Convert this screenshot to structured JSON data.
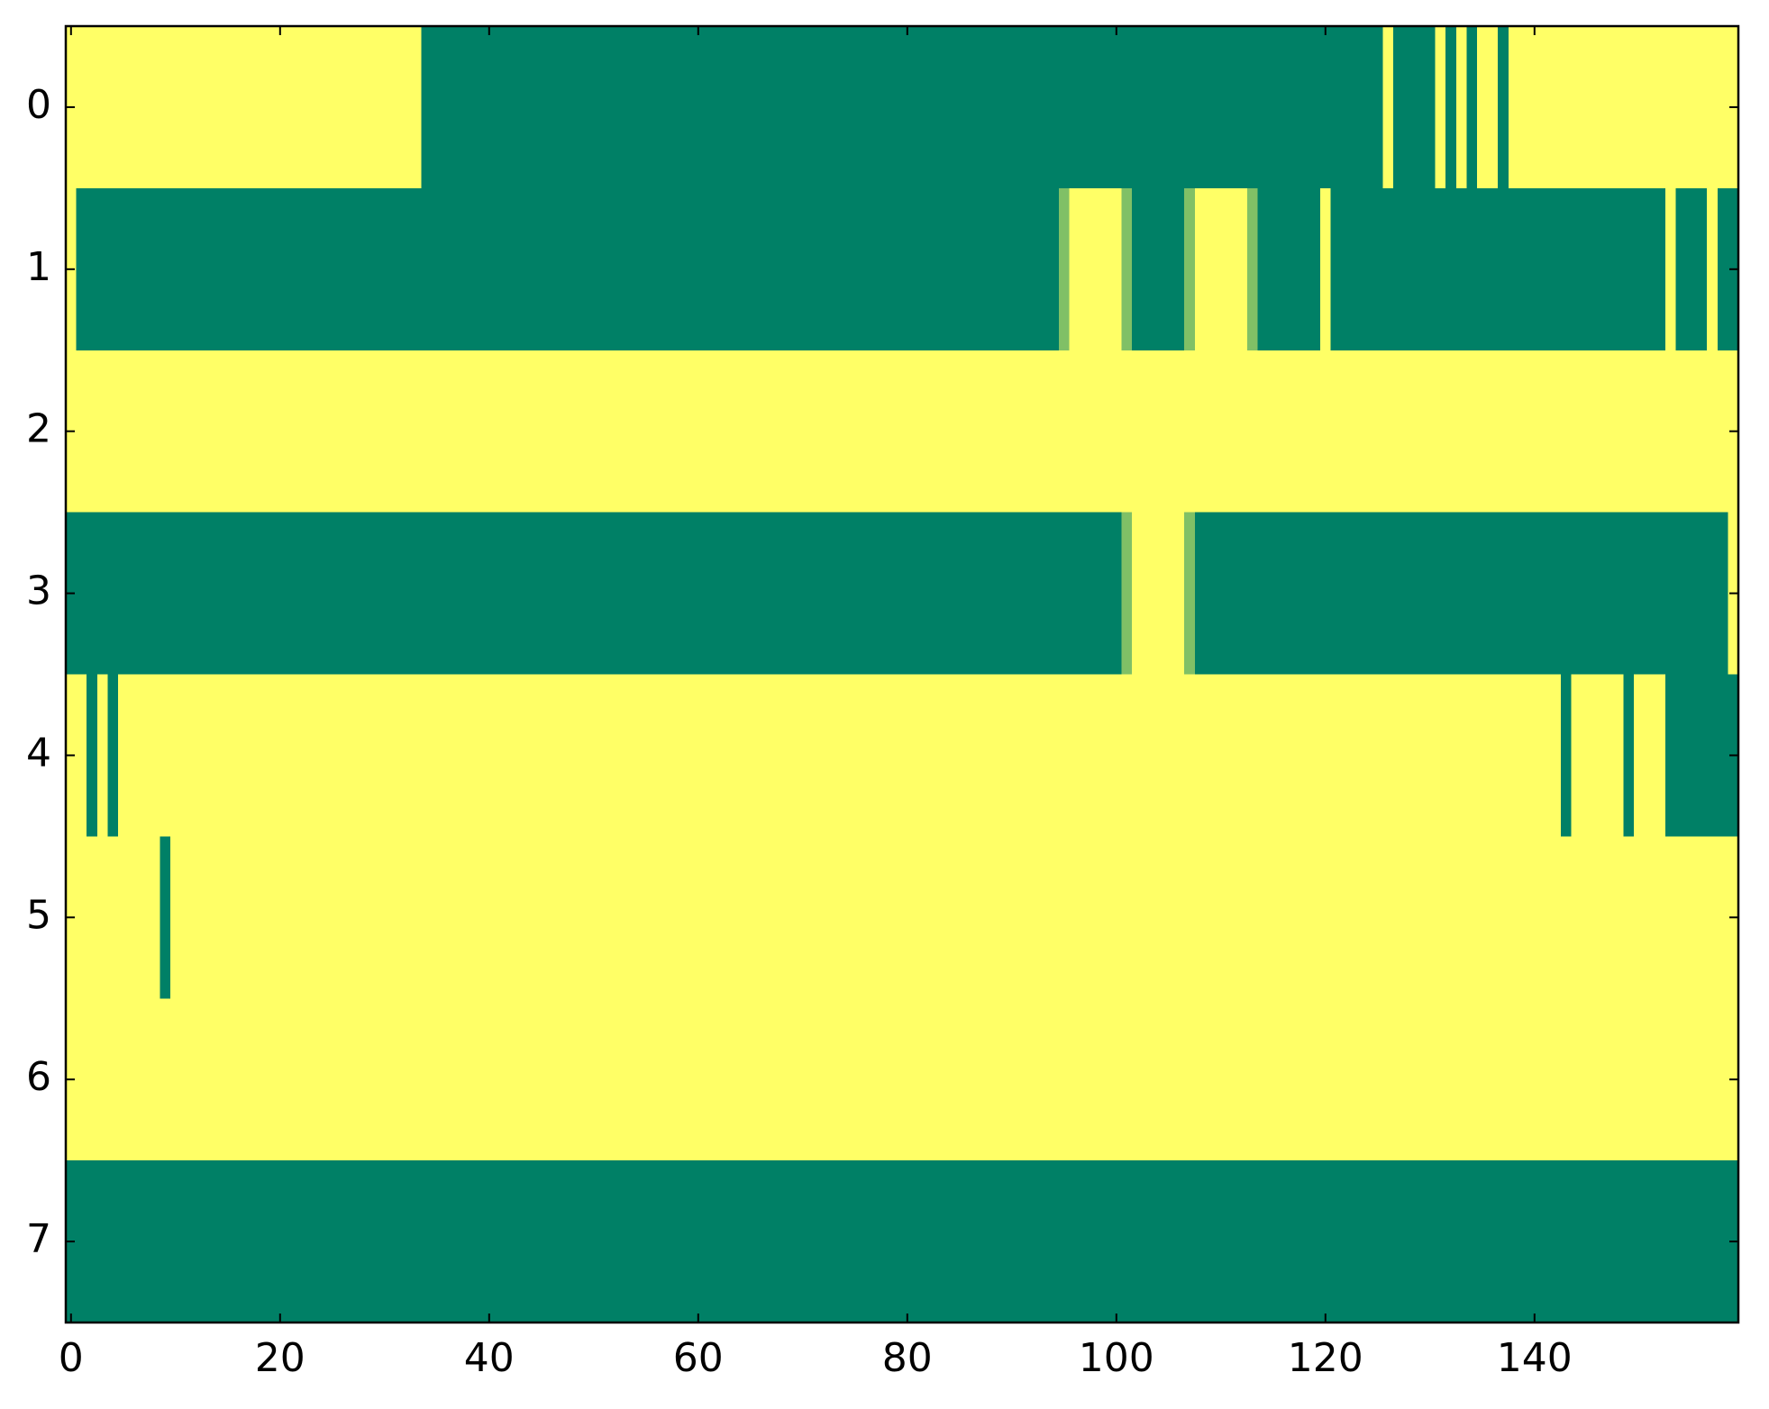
{
  "chart_data": {
    "type": "heatmap",
    "colormap": "summer",
    "cmap_colors": [
      "#008066",
      "#ffff66"
    ],
    "clim": [
      0,
      1
    ],
    "xlim": [
      -0.5,
      159.5
    ],
    "ylim": [
      7.5,
      -0.5
    ],
    "xticks": [
      0,
      20,
      40,
      60,
      80,
      100,
      120,
      140
    ],
    "yticks": [
      0,
      1,
      2,
      3,
      4,
      5,
      6,
      7
    ],
    "values": [
      [
        1,
        1,
        1,
        1,
        1,
        1,
        1,
        1,
        1,
        1,
        1,
        1,
        1,
        1,
        1,
        1,
        1,
        1,
        1,
        1,
        1,
        1,
        1,
        1,
        1,
        1,
        1,
        1,
        1,
        1,
        1,
        1,
        1,
        1,
        0,
        0,
        0,
        0,
        0,
        0,
        0,
        0,
        0,
        0,
        0,
        0,
        0,
        0,
        0,
        0,
        0,
        0,
        0,
        0,
        0,
        0,
        0,
        0,
        0,
        0,
        0,
        0,
        0,
        0,
        0,
        0,
        0,
        0,
        0,
        0,
        0,
        0,
        0,
        0,
        0,
        0,
        0,
        0,
        0,
        0,
        0,
        0,
        0,
        0,
        0,
        0,
        0,
        0,
        0,
        0,
        0,
        0,
        0,
        0,
        0,
        0,
        0,
        0,
        0,
        0,
        0,
        0,
        0,
        0,
        0,
        0,
        0,
        0,
        0,
        0,
        0,
        0,
        0,
        0,
        0,
        0,
        0,
        0,
        0,
        0,
        0,
        0,
        0,
        0,
        0,
        0,
        1,
        0,
        0,
        0,
        0,
        1,
        0,
        1,
        0,
        1,
        1,
        0,
        1,
        1,
        1,
        1,
        1,
        1,
        1,
        1,
        1,
        1,
        1,
        1,
        1,
        1,
        1,
        1,
        1,
        1,
        1,
        1,
        1,
        1
      ],
      [
        1,
        0,
        0,
        0,
        0,
        0,
        0,
        0,
        0,
        0,
        0,
        0,
        0,
        0,
        0,
        0,
        0,
        0,
        0,
        0,
        0,
        0,
        0,
        0,
        0,
        0,
        0,
        0,
        0,
        0,
        0,
        0,
        0,
        0,
        0,
        0,
        0,
        0,
        0,
        0,
        0,
        0,
        0,
        0,
        0,
        0,
        0,
        0,
        0,
        0,
        0,
        0,
        0,
        0,
        0,
        0,
        0,
        0,
        0,
        0,
        0,
        0,
        0,
        0,
        0,
        0,
        0,
        0,
        0,
        0,
        0,
        0,
        0,
        0,
        0,
        0,
        0,
        0,
        0,
        0,
        0,
        0,
        0,
        0,
        0,
        0,
        0,
        0,
        0,
        0,
        0,
        0,
        0,
        0,
        0,
        0.5,
        1,
        1,
        1,
        1,
        1,
        0.5,
        0,
        0,
        0,
        0,
        0,
        0.5,
        1,
        1,
        1,
        1,
        1,
        0.5,
        0,
        0,
        0,
        0,
        0,
        0,
        1,
        0,
        0,
        0,
        0,
        0,
        0,
        0,
        0,
        0,
        0,
        0,
        0,
        0,
        0,
        0,
        0,
        0,
        0,
        0,
        0,
        0,
        0,
        0,
        0,
        0,
        0,
        0,
        0,
        0,
        0,
        0,
        0,
        1,
        0,
        0,
        0,
        1,
        0,
        0
      ],
      [
        1,
        1,
        1,
        1,
        1,
        1,
        1,
        1,
        1,
        1,
        1,
        1,
        1,
        1,
        1,
        1,
        1,
        1,
        1,
        1,
        1,
        1,
        1,
        1,
        1,
        1,
        1,
        1,
        1,
        1,
        1,
        1,
        1,
        1,
        1,
        1,
        1,
        1,
        1,
        1,
        1,
        1,
        1,
        1,
        1,
        1,
        1,
        1,
        1,
        1,
        1,
        1,
        1,
        1,
        1,
        1,
        1,
        1,
        1,
        1,
        1,
        1,
        1,
        1,
        1,
        1,
        1,
        1,
        1,
        1,
        1,
        1,
        1,
        1,
        1,
        1,
        1,
        1,
        1,
        1,
        1,
        1,
        1,
        1,
        1,
        1,
        1,
        1,
        1,
        1,
        1,
        1,
        1,
        1,
        1,
        1,
        1,
        1,
        1,
        1,
        1,
        1,
        1,
        1,
        1,
        1,
        1,
        1,
        1,
        1,
        1,
        1,
        1,
        1,
        1,
        1,
        1,
        1,
        1,
        1,
        1,
        1,
        1,
        1,
        1,
        1,
        1,
        1,
        1,
        1,
        1,
        1,
        1,
        1,
        1,
        1,
        1,
        1,
        1,
        1,
        1,
        1,
        1,
        1,
        1,
        1,
        1,
        1,
        1,
        1,
        1,
        1,
        1,
        1,
        1,
        1,
        1,
        1,
        1,
        1
      ],
      [
        0,
        0,
        0,
        0,
        0,
        0,
        0,
        0,
        0,
        0,
        0,
        0,
        0,
        0,
        0,
        0,
        0,
        0,
        0,
        0,
        0,
        0,
        0,
        0,
        0,
        0,
        0,
        0,
        0,
        0,
        0,
        0,
        0,
        0,
        0,
        0,
        0,
        0,
        0,
        0,
        0,
        0,
        0,
        0,
        0,
        0,
        0,
        0,
        0,
        0,
        0,
        0,
        0,
        0,
        0,
        0,
        0,
        0,
        0,
        0,
        0,
        0,
        0,
        0,
        0,
        0,
        0,
        0,
        0,
        0,
        0,
        0,
        0,
        0,
        0,
        0,
        0,
        0,
        0,
        0,
        0,
        0,
        0,
        0,
        0,
        0,
        0,
        0,
        0,
        0,
        0,
        0,
        0,
        0,
        0,
        0,
        0,
        0,
        0,
        0,
        0,
        0.5,
        1,
        1,
        1,
        1,
        1,
        0.5,
        0,
        0,
        0,
        0,
        0,
        0,
        0,
        0,
        0,
        0,
        0,
        0,
        0,
        0,
        0,
        0,
        0,
        0,
        0,
        0,
        0,
        0,
        0,
        0,
        0,
        0,
        0,
        0,
        0,
        0,
        0,
        0,
        0,
        0,
        0,
        0,
        0,
        0,
        0,
        0,
        0,
        0,
        0,
        0,
        0,
        0,
        0,
        0,
        0,
        0,
        0,
        1
      ],
      [
        1,
        1,
        0,
        1,
        0,
        1,
        1,
        1,
        1,
        1,
        1,
        1,
        1,
        1,
        1,
        1,
        1,
        1,
        1,
        1,
        1,
        1,
        1,
        1,
        1,
        1,
        1,
        1,
        1,
        1,
        1,
        1,
        1,
        1,
        1,
        1,
        1,
        1,
        1,
        1,
        1,
        1,
        1,
        1,
        1,
        1,
        1,
        1,
        1,
        1,
        1,
        1,
        1,
        1,
        1,
        1,
        1,
        1,
        1,
        1,
        1,
        1,
        1,
        1,
        1,
        1,
        1,
        1,
        1,
        1,
        1,
        1,
        1,
        1,
        1,
        1,
        1,
        1,
        1,
        1,
        1,
        1,
        1,
        1,
        1,
        1,
        1,
        1,
        1,
        1,
        1,
        1,
        1,
        1,
        1,
        1,
        1,
        1,
        1,
        1,
        1,
        1,
        1,
        1,
        1,
        1,
        1,
        1,
        1,
        1,
        1,
        1,
        1,
        1,
        1,
        1,
        1,
        1,
        1,
        1,
        1,
        1,
        1,
        1,
        1,
        1,
        1,
        1,
        1,
        1,
        1,
        1,
        1,
        1,
        1,
        1,
        1,
        1,
        1,
        1,
        1,
        1,
        1,
        0,
        1,
        1,
        1,
        1,
        1,
        0,
        1,
        1,
        1,
        0,
        0,
        0,
        0,
        0,
        0,
        0
      ],
      [
        1,
        1,
        1,
        1,
        1,
        1,
        1,
        1,
        1,
        0,
        1,
        1,
        1,
        1,
        1,
        1,
        1,
        1,
        1,
        1,
        1,
        1,
        1,
        1,
        1,
        1,
        1,
        1,
        1,
        1,
        1,
        1,
        1,
        1,
        1,
        1,
        1,
        1,
        1,
        1,
        1,
        1,
        1,
        1,
        1,
        1,
        1,
        1,
        1,
        1,
        1,
        1,
        1,
        1,
        1,
        1,
        1,
        1,
        1,
        1,
        1,
        1,
        1,
        1,
        1,
        1,
        1,
        1,
        1,
        1,
        1,
        1,
        1,
        1,
        1,
        1,
        1,
        1,
        1,
        1,
        1,
        1,
        1,
        1,
        1,
        1,
        1,
        1,
        1,
        1,
        1,
        1,
        1,
        1,
        1,
        1,
        1,
        1,
        1,
        1,
        1,
        1,
        1,
        1,
        1,
        1,
        1,
        1,
        1,
        1,
        1,
        1,
        1,
        1,
        1,
        1,
        1,
        1,
        1,
        1,
        1,
        1,
        1,
        1,
        1,
        1,
        1,
        1,
        1,
        1,
        1,
        1,
        1,
        1,
        1,
        1,
        1,
        1,
        1,
        1,
        1,
        1,
        1,
        1,
        1,
        1,
        1,
        1,
        1,
        1,
        1,
        1,
        1,
        1,
        1,
        1,
        1,
        1,
        1,
        1
      ],
      [
        1,
        1,
        1,
        1,
        1,
        1,
        1,
        1,
        1,
        1,
        1,
        1,
        1,
        1,
        1,
        1,
        1,
        1,
        1,
        1,
        1,
        1,
        1,
        1,
        1,
        1,
        1,
        1,
        1,
        1,
        1,
        1,
        1,
        1,
        1,
        1,
        1,
        1,
        1,
        1,
        1,
        1,
        1,
        1,
        1,
        1,
        1,
        1,
        1,
        1,
        1,
        1,
        1,
        1,
        1,
        1,
        1,
        1,
        1,
        1,
        1,
        1,
        1,
        1,
        1,
        1,
        1,
        1,
        1,
        1,
        1,
        1,
        1,
        1,
        1,
        1,
        1,
        1,
        1,
        1,
        1,
        1,
        1,
        1,
        1,
        1,
        1,
        1,
        1,
        1,
        1,
        1,
        1,
        1,
        1,
        1,
        1,
        1,
        1,
        1,
        1,
        1,
        1,
        1,
        1,
        1,
        1,
        1,
        1,
        1,
        1,
        1,
        1,
        1,
        1,
        1,
        1,
        1,
        1,
        1,
        1,
        1,
        1,
        1,
        1,
        1,
        1,
        1,
        1,
        1,
        1,
        1,
        1,
        1,
        1,
        1,
        1,
        1,
        1,
        1,
        1,
        1,
        1,
        1,
        1,
        1,
        1,
        1,
        1,
        1,
        1,
        1,
        1,
        1,
        1,
        1,
        1,
        1,
        1,
        1
      ],
      [
        0,
        0,
        0,
        0,
        0,
        0,
        0,
        0,
        0,
        0,
        0,
        0,
        0,
        0,
        0,
        0,
        0,
        0,
        0,
        0,
        0,
        0,
        0,
        0,
        0,
        0,
        0,
        0,
        0,
        0,
        0,
        0,
        0,
        0,
        0,
        0,
        0,
        0,
        0,
        0,
        0,
        0,
        0,
        0,
        0,
        0,
        0,
        0,
        0,
        0,
        0,
        0,
        0,
        0,
        0,
        0,
        0,
        0,
        0,
        0,
        0,
        0,
        0,
        0,
        0,
        0,
        0,
        0,
        0,
        0,
        0,
        0,
        0,
        0,
        0,
        0,
        0,
        0,
        0,
        0,
        0,
        0,
        0,
        0,
        0,
        0,
        0,
        0,
        0,
        0,
        0,
        0,
        0,
        0,
        0,
        0,
        0,
        0,
        0,
        0,
        0,
        0,
        0,
        0,
        0,
        0,
        0,
        0,
        0,
        0,
        0,
        0,
        0,
        0,
        0,
        0,
        0,
        0,
        0,
        0,
        0,
        0,
        0,
        0,
        0,
        0,
        0,
        0,
        0,
        0,
        0,
        0,
        0,
        0,
        0,
        0,
        0,
        0,
        0,
        0,
        0,
        0,
        0,
        0,
        0,
        0,
        0,
        0,
        0,
        0,
        0,
        0,
        0,
        0,
        0,
        0,
        0,
        0,
        0,
        0
      ]
    ]
  }
}
